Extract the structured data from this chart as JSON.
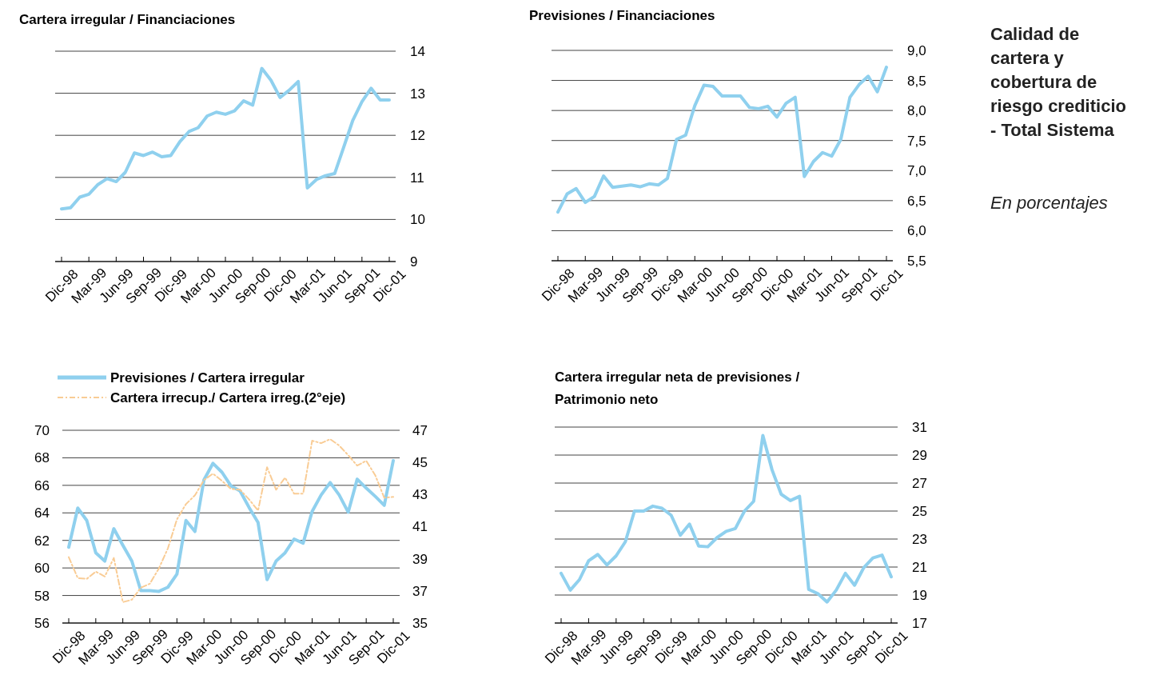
{
  "chart_data": [
    {
      "type": "line",
      "title": "Cartera irregular / Financiaciones",
      "categories": [
        "Dic-98",
        null,
        null,
        "Mar-99",
        null,
        null,
        "Jun-99",
        null,
        null,
        "Sep-99",
        null,
        null,
        "Dic-99",
        null,
        null,
        "Mar-00",
        null,
        null,
        "Jun-00",
        null,
        null,
        "Sep-00",
        null,
        null,
        "Dic-00",
        null,
        null,
        "Mar-01",
        null,
        null,
        "Jun-01",
        null,
        null,
        "Sep-01",
        null,
        null,
        "Dic-01"
      ],
      "series": [
        {
          "color": "#8fd0ee",
          "values": [
            10.25,
            10.28,
            10.53,
            10.6,
            10.83,
            10.97,
            10.9,
            11.12,
            11.58,
            11.52,
            11.6,
            11.49,
            11.52,
            11.85,
            12.09,
            12.18,
            12.46,
            12.55,
            12.5,
            12.58,
            12.82,
            12.72,
            13.59,
            13.31,
            12.9,
            13.07,
            13.28,
            10.75,
            10.95,
            11.04,
            11.09,
            11.72,
            12.36,
            12.8,
            13.12,
            12.84,
            12.84
          ]
        }
      ],
      "ylim": [
        9,
        14
      ],
      "yticks": [
        9,
        10,
        11,
        12,
        13,
        14
      ],
      "grid": "y",
      "line_style": "solid",
      "marker": "none"
    },
    {
      "type": "line",
      "title": "Previsiones / Financiaciones",
      "categories": [
        "Dic-98",
        null,
        null,
        "Mar-99",
        null,
        null,
        "Jun-99",
        null,
        null,
        "Sep-99",
        null,
        null,
        "Dic-99",
        null,
        null,
        "Mar-00",
        null,
        null,
        "Jun-00",
        null,
        null,
        "Sep-00",
        null,
        null,
        "Dic-00",
        null,
        null,
        "Mar-01",
        null,
        null,
        "Jun-01",
        null,
        null,
        "Sep-01",
        null,
        null,
        "Dic-01"
      ],
      "series": [
        {
          "color": "#8fd0ee",
          "values": [
            6.31,
            6.61,
            6.7,
            6.47,
            6.57,
            6.91,
            6.72,
            6.74,
            6.76,
            6.73,
            6.78,
            6.76,
            6.87,
            7.52,
            7.59,
            8.08,
            8.42,
            8.4,
            8.24,
            8.24,
            8.24,
            8.05,
            8.03,
            8.07,
            7.89,
            8.12,
            8.22,
            6.9,
            7.15,
            7.3,
            7.24,
            7.52,
            8.22,
            8.43,
            8.57,
            8.31,
            8.72
          ]
        }
      ],
      "ylim": [
        5.5,
        9
      ],
      "yticks": [
        {
          "value": 5.5,
          "label": "5,5"
        },
        {
          "value": 6,
          "label": "6,0"
        },
        {
          "value": 6.5,
          "label": "6,5"
        },
        {
          "value": 7,
          "label": "7,0"
        },
        {
          "value": 7.5,
          "label": "7,5"
        },
        {
          "value": 8,
          "label": "8,0"
        },
        {
          "value": 8.5,
          "label": "8,5"
        },
        {
          "value": 9,
          "label": "9,0"
        }
      ],
      "grid": "y",
      "line_style": "solid",
      "marker": "none"
    },
    {
      "type": "line",
      "categories": [
        "Dic-98",
        null,
        null,
        "Mar-99",
        null,
        null,
        "Jun-99",
        null,
        null,
        "Sep-99",
        null,
        null,
        "Dic-99",
        null,
        null,
        "Mar-00",
        null,
        null,
        "Jun-00",
        null,
        null,
        "Sep-00",
        null,
        null,
        "Dic-00",
        null,
        null,
        "Mar-01",
        null,
        null,
        "Jun-01",
        null,
        null,
        "Sep-01",
        null,
        null,
        "Dic-01"
      ],
      "series": [
        {
          "name": "Previsiones / Cartera irregular",
          "color": "#8fd0ee",
          "line_style": "solid",
          "values": [
            61.5,
            64.35,
            63.45,
            61.1,
            60.5,
            62.85,
            61.65,
            60.5,
            58.35,
            58.35,
            58.3,
            58.6,
            59.55,
            63.45,
            62.65,
            66.4,
            67.6,
            66.95,
            65.95,
            65.6,
            64.4,
            63.3,
            59.15,
            60.5,
            61.1,
            62.1,
            61.8,
            64.1,
            65.3,
            66.2,
            65.3,
            64.05,
            66.45,
            65.8,
            65.2,
            64.55,
            67.8
          ]
        },
        {
          "name": "Cartera irrecup./ Cartera irreg.(2°eje)",
          "color": "#f9cc95",
          "axis": "y2",
          "line_style": "dashed",
          "values": [
            39.1,
            37.8,
            37.75,
            38.2,
            37.9,
            39.05,
            36.3,
            36.45,
            37.2,
            37.45,
            38.4,
            39.65,
            41.45,
            42.4,
            42.95,
            43.9,
            44.3,
            43.85,
            43.35,
            43.3,
            42.7,
            42.0,
            44.7,
            43.3,
            44.05,
            43.05,
            43.05,
            46.35,
            46.2,
            46.45,
            46.05,
            45.45,
            44.8,
            45.1,
            44.2,
            42.8,
            42.85
          ]
        }
      ],
      "ylim": [
        56,
        70
      ],
      "yticks": [
        56,
        58,
        60,
        62,
        64,
        66,
        68,
        70
      ],
      "y2lim": [
        35,
        47
      ],
      "y2ticks": [
        35,
        37,
        39,
        41,
        43,
        45,
        47
      ],
      "grid": "y",
      "legend": "top left",
      "marker": "none"
    },
    {
      "type": "line",
      "title": "Cartera irregular neta de previsiones / Patrimonio neto",
      "categories": [
        "Dic-98",
        null,
        null,
        "Mar-99",
        null,
        null,
        "Jun-99",
        null,
        null,
        "Sep-99",
        null,
        null,
        "Dic-99",
        null,
        null,
        "Mar-00",
        null,
        null,
        "Jun-00",
        null,
        null,
        "Sep-00",
        null,
        null,
        "Dic-00",
        null,
        null,
        "Mar-01",
        null,
        null,
        "Jun-01",
        null,
        null,
        "Sep-01",
        null,
        null,
        "Dic-01"
      ],
      "series": [
        {
          "color": "#8fd0ee",
          "values": [
            20.55,
            19.35,
            20.1,
            21.45,
            21.9,
            21.15,
            21.8,
            22.8,
            25.0,
            25.0,
            25.35,
            25.2,
            24.7,
            23.27,
            24.07,
            22.5,
            22.45,
            23.1,
            23.55,
            23.75,
            25.0,
            25.7,
            30.4,
            27.95,
            26.2,
            25.75,
            26.05,
            19.4,
            19.1,
            18.5,
            19.35,
            20.55,
            19.7,
            20.95,
            21.65,
            21.85,
            20.3
          ]
        }
      ],
      "ylim": [
        17,
        31
      ],
      "yticks": [
        17,
        19,
        21,
        23,
        25,
        27,
        29,
        31
      ],
      "grid": "y",
      "line_style": "solid",
      "marker": "none"
    },
    {
      "type": "other",
      "title": "Calidad de cartera y cobertura de riesgo crediticio - Total Sistema",
      "subtitle": "En porcentajes"
    }
  ]
}
